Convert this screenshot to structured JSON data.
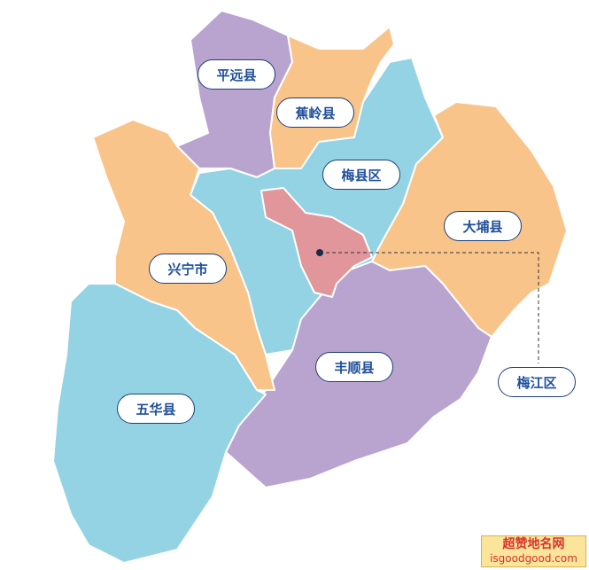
{
  "map": {
    "colors": {
      "orange": "#f9c48a",
      "purple": "#b9a3cf",
      "cyan": "#93d3e3",
      "red": "#e0969a",
      "label_border": "#1b3f7a",
      "label_text": "#1f4f9a"
    },
    "regions": [
      {
        "name": "平远县",
        "color": "purple"
      },
      {
        "name": "蕉岭县",
        "color": "orange"
      },
      {
        "name": "梅县区",
        "color": "cyan"
      },
      {
        "name": "大埔县",
        "color": "orange"
      },
      {
        "name": "兴宁市",
        "color": "orange"
      },
      {
        "name": "丰顺县",
        "color": "purple"
      },
      {
        "name": "五华县",
        "color": "cyan"
      },
      {
        "name": "梅江区",
        "color": "red"
      }
    ]
  },
  "watermark": {
    "title": "超赞地名网",
    "url": "isgoodgood.com"
  }
}
